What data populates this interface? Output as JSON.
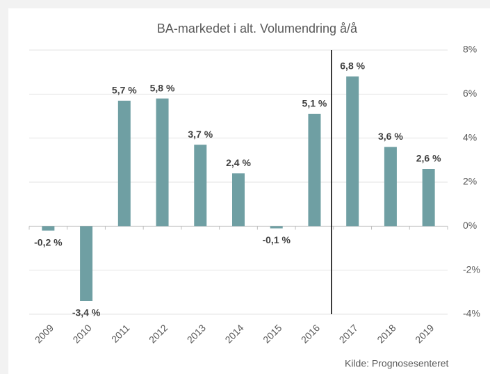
{
  "chart_data": {
    "type": "bar",
    "title": "BA-markedet i alt. Volumendring å/å",
    "categories": [
      "2009",
      "2010",
      "2011",
      "2012",
      "2013",
      "2014",
      "2015",
      "2016",
      "2017",
      "2018",
      "2019"
    ],
    "values": [
      -0.2,
      -3.4,
      5.7,
      5.8,
      3.7,
      2.4,
      -0.1,
      5.1,
      6.8,
      3.6,
      2.6
    ],
    "value_labels": [
      "-0,2 %",
      "-3,4 %",
      "5,7 %",
      "5,8 %",
      "3,7 %",
      "2,4 %",
      "-0,1 %",
      "5,1 %",
      "6,8 %",
      "3,6 %",
      "2,6 %"
    ],
    "color": "#6f9fa3",
    "ylim": [
      -4,
      8
    ],
    "yticks": [
      {
        "value": -4,
        "label": "-4%"
      },
      {
        "value": -2,
        "label": "-2%"
      },
      {
        "value": 0,
        "label": "0%"
      },
      {
        "value": 2,
        "label": "2%"
      },
      {
        "value": 4,
        "label": "4%"
      },
      {
        "value": 6,
        "label": "6%"
      },
      {
        "value": 8,
        "label": "8%"
      }
    ],
    "grid": true,
    "annotation": "Kilde: Prognosesenteret"
  }
}
